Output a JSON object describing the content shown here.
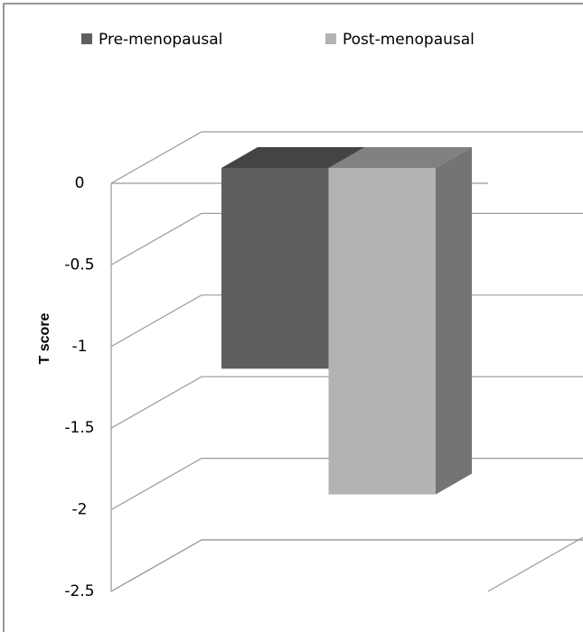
{
  "chart_data": {
    "type": "bar",
    "y_label": "T score",
    "categories": [
      null
    ],
    "series": [
      {
        "name": "Pre-menopausal",
        "color": "#5f5f5f",
        "values": [
          -1.23
        ]
      },
      {
        "name": "Post-menopausal",
        "color": "#b3b3b3",
        "values": [
          -2
        ]
      }
    ],
    "ylim": [
      -2.5,
      0
    ],
    "yticks": [
      0,
      -0.5,
      -1,
      -1.5,
      -2,
      -2.5
    ],
    "grid": true
  }
}
